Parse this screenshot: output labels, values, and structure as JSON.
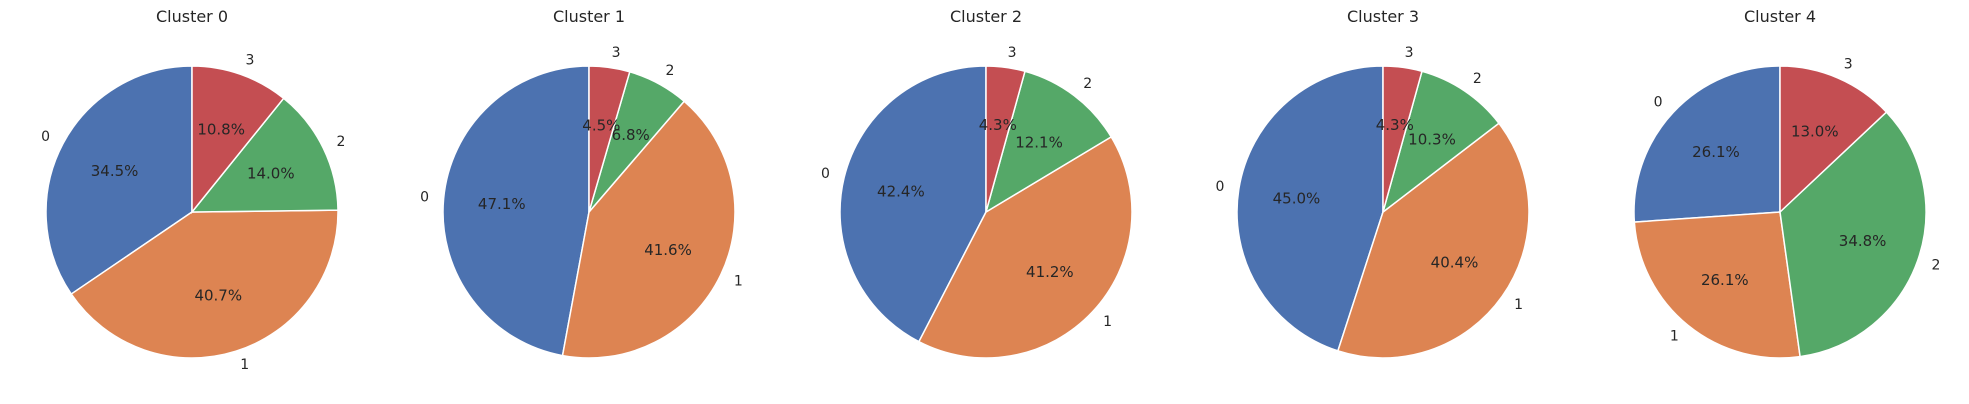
{
  "chart_data": [
    {
      "type": "pie",
      "title": "Cluster 0",
      "labels": [
        "0",
        "1",
        "2",
        "3"
      ],
      "values": [
        34.5,
        40.7,
        14.0,
        10.8
      ],
      "value_labels": [
        "34.5%",
        "40.7%",
        "14.0%",
        "10.8%"
      ]
    },
    {
      "type": "pie",
      "title": "Cluster 1",
      "labels": [
        "0",
        "1",
        "2",
        "3"
      ],
      "values": [
        47.1,
        41.6,
        6.8,
        4.5
      ],
      "value_labels": [
        "47.1%",
        "41.6%",
        "6.8%",
        "4.5%"
      ]
    },
    {
      "type": "pie",
      "title": "Cluster 2",
      "labels": [
        "0",
        "1",
        "2",
        "3"
      ],
      "values": [
        42.4,
        41.2,
        12.1,
        4.3
      ],
      "value_labels": [
        "42.4%",
        "41.2%",
        "12.1%",
        "4.3%"
      ]
    },
    {
      "type": "pie",
      "title": "Cluster 3",
      "labels": [
        "0",
        "1",
        "2",
        "3"
      ],
      "values": [
        45.0,
        40.4,
        10.3,
        4.3
      ],
      "value_labels": [
        "45.0%",
        "40.4%",
        "10.3%",
        "4.3%"
      ]
    },
    {
      "type": "pie",
      "title": "Cluster 4",
      "labels": [
        "0",
        "1",
        "2",
        "3"
      ],
      "values": [
        26.1,
        26.1,
        34.8,
        13.0
      ],
      "value_labels": [
        "26.1%",
        "26.1%",
        "34.8%",
        "13.0%"
      ]
    }
  ],
  "colors": [
    "#4c72b0",
    "#dd8452",
    "#55a868",
    "#c44e52"
  ],
  "start_angle_deg": 90,
  "direction": "counterclockwise"
}
